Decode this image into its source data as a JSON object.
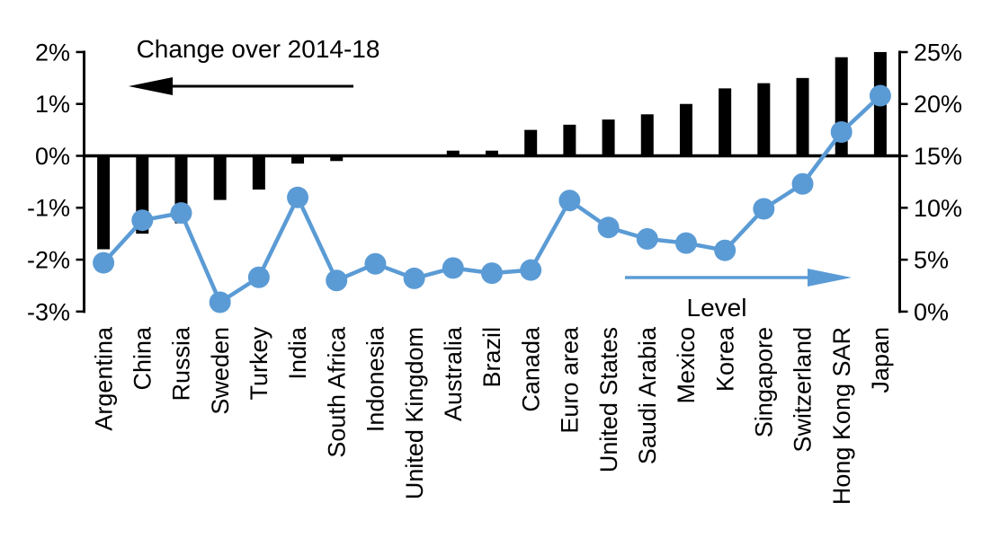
{
  "chart_data": {
    "type": "bar",
    "subtype": "combo-bar-line-dual-axis",
    "title": "",
    "categories": [
      "Argentina",
      "China",
      "Russia",
      "Sweden",
      "Turkey",
      "India",
      "South Africa",
      "Indonesia",
      "United Kingdom",
      "Australia",
      "Brazil",
      "Canada",
      "Euro area",
      "United States",
      "Saudi Arabia",
      "Mexico",
      "Korea",
      "Singapore",
      "Switzerland",
      "Hong Kong SAR",
      "Japan"
    ],
    "series": [
      {
        "name": "Change over 2014-18",
        "type": "bar",
        "axis": "left",
        "color": "#000000",
        "values": [
          -1.8,
          -1.5,
          -1.3,
          -0.85,
          -0.65,
          -0.15,
          -0.1,
          0,
          0,
          0.1,
          0.1,
          0.5,
          0.6,
          0.7,
          0.8,
          1.0,
          1.3,
          1.4,
          1.5,
          1.9,
          2.0
        ]
      },
      {
        "name": "Level",
        "type": "line",
        "axis": "right",
        "color": "#5b9bd5",
        "values": [
          4.7,
          8.8,
          9.5,
          0.9,
          3.3,
          11.0,
          3.0,
          4.6,
          3.2,
          4.2,
          3.7,
          4.0,
          10.7,
          8.1,
          7.0,
          6.6,
          5.9,
          9.9,
          12.3,
          17.3,
          20.8
        ]
      }
    ],
    "left_axis": {
      "min": -3,
      "max": 2,
      "tick_values": [
        2,
        1,
        0,
        -1,
        -2,
        -3
      ],
      "tick_labels": [
        "2%",
        "1%",
        "0%",
        "-1%",
        "-2%",
        "-3%"
      ]
    },
    "right_axis": {
      "min": 0,
      "max": 25,
      "tick_values": [
        25,
        20,
        15,
        10,
        5,
        0
      ],
      "tick_labels": [
        "25%",
        "20%",
        "15%",
        "10%",
        "5%",
        "0%"
      ]
    },
    "annotations": {
      "bar_series_label": "Change over 2014-18",
      "line_series_label": "Level"
    },
    "layout": {
      "grid": false,
      "legend": "none",
      "x_labels_rotation_deg": 90
    },
    "colors": {
      "bar": "#000000",
      "line": "#5b9bd5",
      "marker": "#5b9bd5",
      "axis": "#000000",
      "text": "#000000",
      "background": "#ffffff"
    }
  }
}
